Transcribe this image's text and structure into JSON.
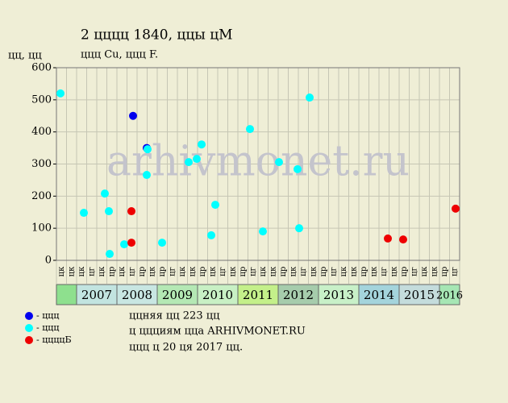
{
  "chart_data": {
    "type": "scatter",
    "title": "2 цццц 1840, ццы цМ",
    "subtitle": "ццц Cu, ццц F.",
    "y_label": "цц, цц",
    "watermark": "arhivmonet.ru",
    "xlim": [
      2006.5,
      2016.5
    ],
    "ylim": [
      0,
      600
    ],
    "yticks": [
      0,
      100,
      200,
      300,
      400,
      500,
      600
    ],
    "grid": true,
    "column_labels": [
      "цк",
      "цк",
      "цк",
      "цг",
      "цк",
      "цр",
      "цк",
      "цг",
      "цр",
      "цк",
      "цр",
      "цг",
      "цк",
      "цк",
      "цр",
      "цк",
      "цг",
      "цк",
      "цр",
      "цг",
      "цк",
      "цк",
      "цр",
      "цк",
      "цг",
      "цк",
      "цр",
      "цг",
      "цк",
      "цк",
      "цр",
      "цк",
      "цг",
      "цк",
      "цр",
      "цг",
      "цк",
      "цк",
      "цр",
      "цг"
    ],
    "year_bands": {
      "labels": [
        null,
        "2007",
        "2008",
        "2009",
        "2010",
        "2011",
        "2012",
        "2013",
        "2014",
        "2015",
        "2016"
      ],
      "colors": [
        "#8ee08e",
        "#c2e4e0",
        "#c8e6e2",
        "#b4e8b4",
        "#c8f0c4",
        "#c4f08a",
        "#a6ccac",
        "#c8f0c8",
        "#a4d4dc",
        "#c4dcdc",
        "#a6e6b4"
      ]
    },
    "series": [
      {
        "name": "- ццц",
        "color": "#0000ee",
        "x": [
          2008.4,
          2008.74
        ],
        "values": [
          450,
          350
        ]
      },
      {
        "name": "- ццц",
        "color": "#00ffff",
        "x": [
          2006.6,
          2007.18,
          2007.7,
          2007.8,
          2007.82,
          2008.18,
          2008.74,
          2008.76,
          2009.12,
          2009.78,
          2009.98,
          2010.1,
          2010.34,
          2010.44,
          2011.3,
          2011.62,
          2012.02,
          2012.48,
          2012.52,
          2012.78
        ],
        "values": [
          520,
          148,
          208,
          153,
          20,
          50,
          266,
          346,
          55,
          306,
          316,
          361,
          78,
          173,
          409,
          90,
          306,
          284,
          100,
          507
        ]
      },
      {
        "name": "- ццццБ",
        "color": "#ee0000",
        "x": [
          2008.36,
          2008.36,
          2014.72,
          2015.1,
          2016.4
        ],
        "values": [
          153,
          55,
          68,
          65,
          161
        ]
      }
    ],
    "notes": [
      "ццняя цц 223 цц",
      "ц ццциям цца ARHIVMONET.RU",
      "ццц ц 20 ця 2017 цц."
    ]
  }
}
